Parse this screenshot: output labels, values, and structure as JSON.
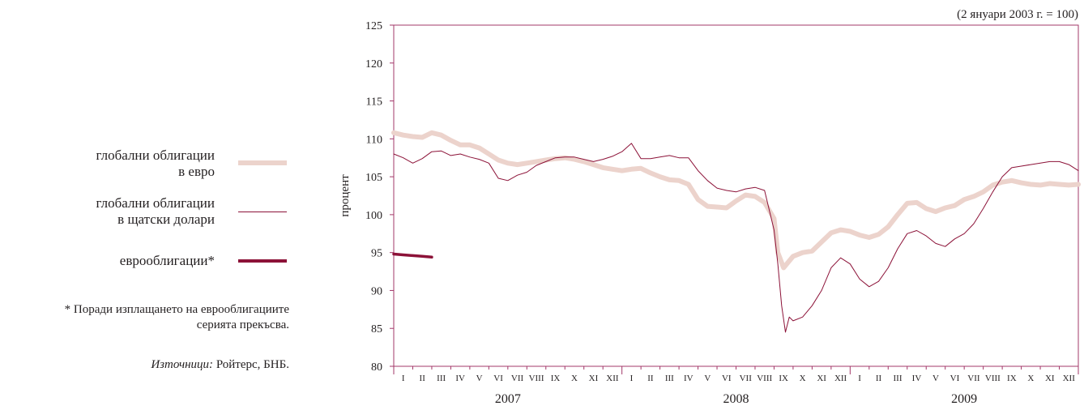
{
  "legend": {
    "items": [
      {
        "label_lines": [
          "глобални облигации",
          "в евро"
        ],
        "color": "#ecd3cc",
        "style": "thick-light"
      },
      {
        "label_lines": [
          "глобални облигации",
          "в щатски долари"
        ],
        "color": "#8c1238",
        "style": "thin"
      },
      {
        "label_lines": [
          "еврооблигации*"
        ],
        "color": "#8c1238",
        "style": "thick-dark"
      }
    ]
  },
  "footnote": {
    "lines": [
      "* Поради изплащането на еврооблигациите",
      "серията прекъсва."
    ]
  },
  "source": {
    "prefix": "Източници:",
    "text": " Ройтерс, БНБ."
  },
  "chart_data": {
    "type": "line",
    "annotation": "(2 януари 2003 г. = 100)",
    "ylabel": "процент",
    "ylim": [
      80,
      125
    ],
    "yticks": [
      80,
      85,
      90,
      95,
      100,
      105,
      110,
      115,
      120,
      125
    ],
    "x_range": [
      0,
      36
    ],
    "month_labels": [
      "I",
      "II",
      "III",
      "IV",
      "V",
      "VI",
      "VII",
      "VIII",
      "IX",
      "X",
      "XI",
      "XII"
    ],
    "years": [
      "2007",
      "2008",
      "2009"
    ],
    "grid": false,
    "colors": {
      "axis": "#a3386a",
      "euro": "#ecd3cc",
      "usd": "#8c1238",
      "eurobonds": "#8c1238"
    },
    "series": [
      {
        "name": "глобални облигации в евро",
        "x": [
          0,
          0.5,
          1,
          1.5,
          2,
          2.5,
          3,
          3.5,
          4,
          4.5,
          5,
          5.5,
          6,
          6.5,
          7,
          7.5,
          8,
          8.5,
          9,
          9.5,
          10,
          10.5,
          11,
          11.5,
          12,
          12.5,
          13,
          13.5,
          14,
          14.5,
          15,
          15.5,
          16,
          16.5,
          17,
          17.5,
          18,
          18.5,
          19,
          19.5,
          20,
          20.2,
          20.5,
          21,
          21.5,
          22,
          22.5,
          23,
          23.5,
          24,
          24.5,
          25,
          25.5,
          26,
          26.5,
          27,
          27.5,
          28,
          28.5,
          29,
          29.5,
          30,
          30.5,
          31,
          31.5,
          32,
          32.5,
          33,
          33.5,
          34,
          34.5,
          35,
          35.5,
          36
        ],
        "values": [
          110.8,
          110.5,
          110.3,
          110.2,
          110.8,
          110.5,
          109.8,
          109.2,
          109.2,
          108.8,
          108.0,
          107.2,
          106.8,
          106.6,
          106.8,
          107.0,
          107.2,
          107.4,
          107.5,
          107.3,
          107.0,
          106.6,
          106.2,
          106.0,
          105.8,
          106.0,
          106.1,
          105.5,
          105.0,
          104.6,
          104.5,
          104.0,
          102.0,
          101.1,
          101.0,
          100.9,
          101.8,
          102.6,
          102.4,
          101.6,
          99.5,
          95.0,
          93.0,
          94.5,
          95.0,
          95.2,
          96.4,
          97.6,
          98.0,
          97.8,
          97.3,
          97.0,
          97.4,
          98.4,
          100.0,
          101.5,
          101.6,
          100.8,
          100.4,
          100.9,
          101.2,
          102.0,
          102.4,
          103.0,
          103.9,
          104.3,
          104.5,
          104.2,
          104.0,
          103.9,
          104.1,
          104.0,
          103.9,
          104.0
        ]
      },
      {
        "name": "глобални облигации в щатски долари",
        "x": [
          0,
          0.5,
          1,
          1.5,
          2,
          2.5,
          3,
          3.5,
          4,
          4.5,
          5,
          5.5,
          6,
          6.5,
          7,
          7.5,
          8,
          8.5,
          9,
          9.5,
          10,
          10.5,
          11,
          11.5,
          12,
          12.5,
          13,
          13.5,
          14,
          14.5,
          15,
          15.5,
          16,
          16.5,
          17,
          17.5,
          18,
          18.5,
          19,
          19.5,
          20,
          20.2,
          20.4,
          20.6,
          20.8,
          21,
          21.5,
          22,
          22.5,
          23,
          23.5,
          24,
          24.5,
          25,
          25.5,
          26,
          26.5,
          27,
          27.5,
          28,
          28.5,
          29,
          29.5,
          30,
          30.5,
          31,
          31.5,
          32,
          32.5,
          33,
          33.5,
          34,
          34.5,
          35,
          35.5,
          36
        ],
        "values": [
          108.0,
          107.5,
          106.8,
          107.4,
          108.3,
          108.4,
          107.8,
          108.0,
          107.6,
          107.3,
          106.8,
          104.8,
          104.5,
          105.2,
          105.6,
          106.5,
          107.0,
          107.5,
          107.6,
          107.6,
          107.3,
          107.0,
          107.3,
          107.7,
          108.3,
          109.4,
          107.4,
          107.4,
          107.6,
          107.8,
          107.5,
          107.5,
          105.8,
          104.5,
          103.5,
          103.2,
          103.0,
          103.4,
          103.6,
          103.2,
          98.0,
          93.5,
          88.0,
          84.5,
          86.5,
          86.0,
          86.5,
          88.0,
          90.0,
          93.0,
          94.3,
          93.5,
          91.5,
          90.5,
          91.2,
          93.0,
          95.5,
          97.5,
          97.9,
          97.2,
          96.2,
          95.8,
          96.8,
          97.5,
          98.8,
          100.8,
          103.0,
          105.0,
          106.2,
          106.4,
          106.6,
          106.8,
          107.0,
          107.0,
          106.6,
          105.8
        ]
      },
      {
        "name": "еврооблигации*",
        "x": [
          0,
          0.5,
          1,
          1.5,
          2
        ],
        "values": [
          94.8,
          94.7,
          94.6,
          94.5,
          94.4
        ]
      }
    ]
  }
}
